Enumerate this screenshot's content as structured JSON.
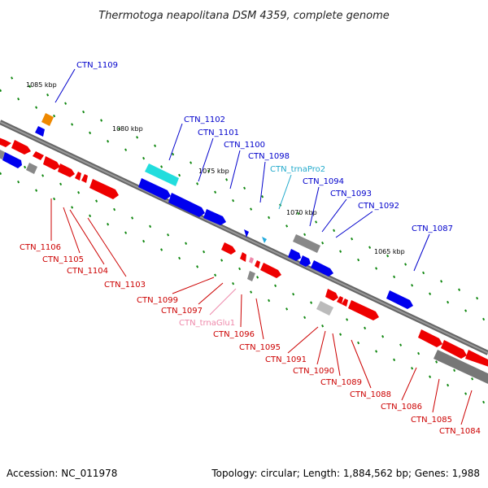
{
  "title": "Thermotoga neapolitana DSM 4359, complete genome",
  "footer": {
    "accession": "Accession: NC_011978",
    "summary": "Topology: circular; Length: 1,884,562 bp; Genes: 1,988"
  },
  "scale_labels": [
    "1085 kbp",
    "1080 kbp",
    "1075 kbp",
    "1070 kbp",
    "1065 kbp"
  ],
  "colors": {
    "backbone": "#777777",
    "forward_cds": "#0000ee",
    "reverse_cds": "#ee0000",
    "trna_pro": "#22bbdd",
    "trna_glu": "#ee88aa",
    "rrna": "#ee8800",
    "other": "#888888",
    "cyan_feature": "#22dddd",
    "ticks": "#118811"
  },
  "labels": [
    {
      "text": "CTN_1109",
      "color": "#0000cc"
    },
    {
      "text": "CTN_1102",
      "color": "#0000cc"
    },
    {
      "text": "CTN_1101",
      "color": "#0000cc"
    },
    {
      "text": "CTN_1100",
      "color": "#0000cc"
    },
    {
      "text": "CTN_1098",
      "color": "#0000cc"
    },
    {
      "text": "CTN_trnaPro2",
      "color": "#22aacc"
    },
    {
      "text": "CTN_1094",
      "color": "#0000cc"
    },
    {
      "text": "CTN_1093",
      "color": "#0000cc"
    },
    {
      "text": "CTN_1092",
      "color": "#0000cc"
    },
    {
      "text": "CTN_1087",
      "color": "#0000cc"
    },
    {
      "text": "CTN_1106",
      "color": "#cc0000"
    },
    {
      "text": "CTN_1105",
      "color": "#cc0000"
    },
    {
      "text": "CTN_1104",
      "color": "#cc0000"
    },
    {
      "text": "CTN_1103",
      "color": "#cc0000"
    },
    {
      "text": "CTN_1099",
      "color": "#cc0000"
    },
    {
      "text": "CTN_1097",
      "color": "#cc0000"
    },
    {
      "text": "CTN_trnaGlu1",
      "color": "#ee88aa"
    },
    {
      "text": "CTN_1096",
      "color": "#cc0000"
    },
    {
      "text": "CTN_1095",
      "color": "#cc0000"
    },
    {
      "text": "CTN_1091",
      "color": "#cc0000"
    },
    {
      "text": "CTN_1090",
      "color": "#cc0000"
    },
    {
      "text": "CTN_1089",
      "color": "#cc0000"
    },
    {
      "text": "CTN_1088",
      "color": "#cc0000"
    },
    {
      "text": "CTN_1086",
      "color": "#cc0000"
    },
    {
      "text": "CTN_1085",
      "color": "#cc0000"
    },
    {
      "text": "CTN_1084",
      "color": "#cc0000"
    }
  ]
}
